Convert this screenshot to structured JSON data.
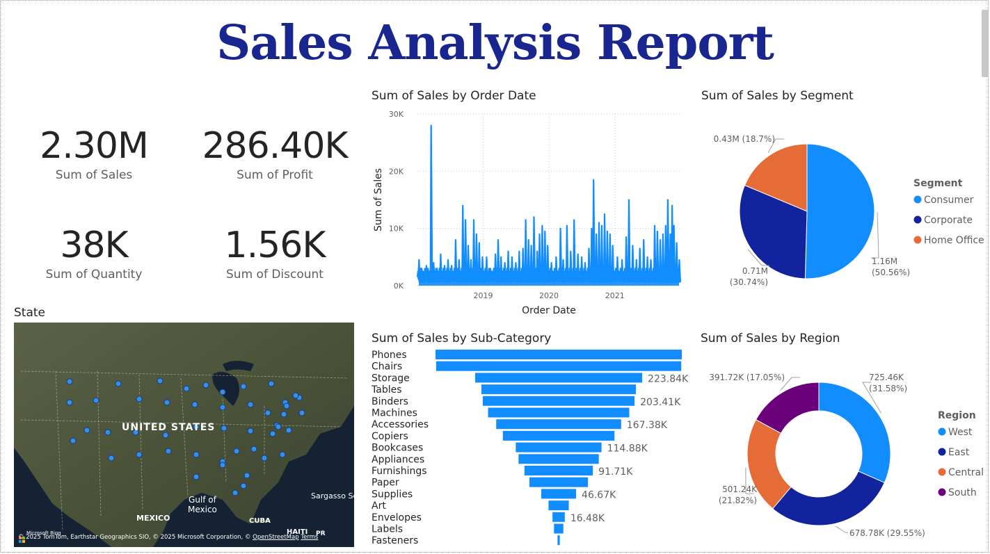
{
  "title": "Sales Analysis Report",
  "kpis": [
    {
      "value": "2.30M",
      "label": "Sum of Sales"
    },
    {
      "value": "286.40K",
      "label": "Sum of Profit"
    },
    {
      "value": "38K",
      "label": "Sum of Quantity"
    },
    {
      "value": "1.56K",
      "label": "Sum of Discount"
    }
  ],
  "map": {
    "title": "State",
    "labels": {
      "country": "UNITED STATES",
      "gulf": "Gulf of\nMexico",
      "mexico": "MEXICO",
      "cuba": "CUBA",
      "haiti": "HAITI",
      "pr": "PR",
      "sargasso": "Sargasso Se"
    },
    "logo": "Microsoft Bing",
    "attribution_prefix": "© 2025 TomTom, Earthstar Geographics SIO, © 2025 Microsoft Corporation, ©",
    "attribution_link": "OpenStreetMap",
    "attribution_terms": "Terms",
    "colors": {
      "point": "#3a8ee6",
      "land": "#3f4a32",
      "water": "#0d1a2a"
    }
  },
  "chart_data": [
    {
      "type": "line",
      "title": "Sum of Sales by Order Date",
      "xlabel": "Order Date",
      "ylabel": "Sum of Sales",
      "x_ticks": [
        "2019",
        "2020",
        "2021"
      ],
      "y_ticks": [
        "0K",
        "10K",
        "20K",
        "30K"
      ],
      "ylim": [
        0,
        30000
      ],
      "xlim": [
        "2018-01-01",
        "2021-12-31"
      ],
      "grid": true,
      "color": "#118DFF",
      "peaks": [
        {
          "date": "2018-01-10",
          "value": 4500
        },
        {
          "date": "2018-01-25",
          "value": 3000
        },
        {
          "date": "2018-02-20",
          "value": 3500
        },
        {
          "date": "2018-03-05",
          "value": 2500
        },
        {
          "date": "2018-03-18",
          "value": 28000
        },
        {
          "date": "2018-04-01",
          "value": 4000
        },
        {
          "date": "2018-04-20",
          "value": 3000
        },
        {
          "date": "2018-05-10",
          "value": 5500
        },
        {
          "date": "2018-06-01",
          "value": 3500
        },
        {
          "date": "2018-06-20",
          "value": 4500
        },
        {
          "date": "2018-07-10",
          "value": 3500
        },
        {
          "date": "2018-08-01",
          "value": 8000
        },
        {
          "date": "2018-08-20",
          "value": 4500
        },
        {
          "date": "2018-09-10",
          "value": 14000
        },
        {
          "date": "2018-09-25",
          "value": 11500
        },
        {
          "date": "2018-10-10",
          "value": 7000
        },
        {
          "date": "2018-10-25",
          "value": 4500
        },
        {
          "date": "2018-11-10",
          "value": 11500
        },
        {
          "date": "2018-11-25",
          "value": 9000
        },
        {
          "date": "2018-12-10",
          "value": 7500
        },
        {
          "date": "2018-12-28",
          "value": 5000
        },
        {
          "date": "2019-01-20",
          "value": 5000
        },
        {
          "date": "2019-02-10",
          "value": 3000
        },
        {
          "date": "2019-03-10",
          "value": 5500
        },
        {
          "date": "2019-03-25",
          "value": 8000
        },
        {
          "date": "2019-04-10",
          "value": 5000
        },
        {
          "date": "2019-05-01",
          "value": 4000
        },
        {
          "date": "2019-05-20",
          "value": 6000
        },
        {
          "date": "2019-06-10",
          "value": 5000
        },
        {
          "date": "2019-07-01",
          "value": 4000
        },
        {
          "date": "2019-07-20",
          "value": 6000
        },
        {
          "date": "2019-08-10",
          "value": 6500
        },
        {
          "date": "2019-08-25",
          "value": 11500
        },
        {
          "date": "2019-09-10",
          "value": 8000
        },
        {
          "date": "2019-09-25",
          "value": 7000
        },
        {
          "date": "2019-10-10",
          "value": 12000
        },
        {
          "date": "2019-10-28",
          "value": 6000
        },
        {
          "date": "2019-11-10",
          "value": 9000
        },
        {
          "date": "2019-11-25",
          "value": 10500
        },
        {
          "date": "2019-12-10",
          "value": 9500
        },
        {
          "date": "2019-12-25",
          "value": 7000
        },
        {
          "date": "2020-01-15",
          "value": 4000
        },
        {
          "date": "2020-02-10",
          "value": 5000
        },
        {
          "date": "2020-03-05",
          "value": 10000
        },
        {
          "date": "2020-03-20",
          "value": 4500
        },
        {
          "date": "2020-04-10",
          "value": 10500
        },
        {
          "date": "2020-05-01",
          "value": 6000
        },
        {
          "date": "2020-05-20",
          "value": 11500
        },
        {
          "date": "2020-06-10",
          "value": 5500
        },
        {
          "date": "2020-07-01",
          "value": 5000
        },
        {
          "date": "2020-07-20",
          "value": 4000
        },
        {
          "date": "2020-08-10",
          "value": 6500
        },
        {
          "date": "2020-08-25",
          "value": 10000
        },
        {
          "date": "2020-09-05",
          "value": 18500
        },
        {
          "date": "2020-09-20",
          "value": 9000
        },
        {
          "date": "2020-10-05",
          "value": 11000
        },
        {
          "date": "2020-10-20",
          "value": 10500
        },
        {
          "date": "2020-11-05",
          "value": 12500
        },
        {
          "date": "2020-11-20",
          "value": 9500
        },
        {
          "date": "2020-12-05",
          "value": 9000
        },
        {
          "date": "2020-12-20",
          "value": 7000
        },
        {
          "date": "2021-01-15",
          "value": 5000
        },
        {
          "date": "2021-02-10",
          "value": 4500
        },
        {
          "date": "2021-03-05",
          "value": 8500
        },
        {
          "date": "2021-03-20",
          "value": 15000
        },
        {
          "date": "2021-04-10",
          "value": 7000
        },
        {
          "date": "2021-05-01",
          "value": 4500
        },
        {
          "date": "2021-05-20",
          "value": 6500
        },
        {
          "date": "2021-06-10",
          "value": 8000
        },
        {
          "date": "2021-07-01",
          "value": 5000
        },
        {
          "date": "2021-07-20",
          "value": 4500
        },
        {
          "date": "2021-08-10",
          "value": 10500
        },
        {
          "date": "2021-08-25",
          "value": 9500
        },
        {
          "date": "2021-09-10",
          "value": 8000
        },
        {
          "date": "2021-09-25",
          "value": 9000
        },
        {
          "date": "2021-10-10",
          "value": 10500
        },
        {
          "date": "2021-10-22",
          "value": 15000
        },
        {
          "date": "2021-11-05",
          "value": 9000
        },
        {
          "date": "2021-11-15",
          "value": 14000
        },
        {
          "date": "2021-11-25",
          "value": 10500
        },
        {
          "date": "2021-12-10",
          "value": 7500
        },
        {
          "date": "2021-12-25",
          "value": 4500
        }
      ]
    },
    {
      "type": "pie",
      "title": "Sum of Sales by Segment",
      "legend_title": "Segment",
      "legend_placement": "right",
      "slices": [
        {
          "name": "Consumer",
          "value": 1.16,
          "pct": 50.56,
          "label1": "1.16M",
          "label2": "(50.56%)",
          "color": "#118DFF"
        },
        {
          "name": "Corporate",
          "value": 0.71,
          "pct": 30.74,
          "label1": "0.71M",
          "label2": "(30.74%)",
          "color": "#12239E"
        },
        {
          "name": "Home Office",
          "value": 0.43,
          "pct": 18.7,
          "label1": "0.43M (18.7%)",
          "label2": "",
          "color": "#E66C37"
        }
      ]
    },
    {
      "type": "bar",
      "orientation": "funnel",
      "title": "Sum of Sales by Sub-Category",
      "color": "#118DFF",
      "categories": [
        "Phones",
        "Chairs",
        "Storage",
        "Tables",
        "Binders",
        "Machines",
        "Accessories",
        "Copiers",
        "Bookcases",
        "Appliances",
        "Furnishings",
        "Paper",
        "Supplies",
        "Art",
        "Envelopes",
        "Labels",
        "Fasteners"
      ],
      "values": [
        330007,
        328449,
        223844,
        206966,
        203413,
        189239,
        167380,
        149528,
        114880,
        107532,
        91705,
        78479,
        46674,
        27119,
        16476,
        12486,
        3024
      ],
      "data_labels": [
        "",
        "",
        "223.84K",
        "",
        "203.41K",
        "",
        "167.38K",
        "",
        "114.88K",
        "",
        "91.71K",
        "",
        "46.67K",
        "",
        "16.48K",
        "",
        ""
      ]
    },
    {
      "type": "pie",
      "subtype": "donut",
      "title": "Sum of Sales by Region",
      "legend_title": "Region",
      "legend_placement": "right",
      "slices": [
        {
          "name": "West",
          "value": 725.46,
          "pct": 31.58,
          "label1": "725.46K",
          "label2": "(31.58%)",
          "color": "#118DFF"
        },
        {
          "name": "East",
          "value": 678.78,
          "pct": 29.55,
          "label1": "678.78K (29.55%)",
          "label2": "",
          "color": "#12239E"
        },
        {
          "name": "Central",
          "value": 501.24,
          "pct": 21.82,
          "label1": "501.24K",
          "label2": "(21.82%)",
          "color": "#E66C37"
        },
        {
          "name": "South",
          "value": 391.72,
          "pct": 17.05,
          "label1": "391.72K (17.05%)",
          "label2": "",
          "color": "#6B007B"
        }
      ]
    }
  ]
}
